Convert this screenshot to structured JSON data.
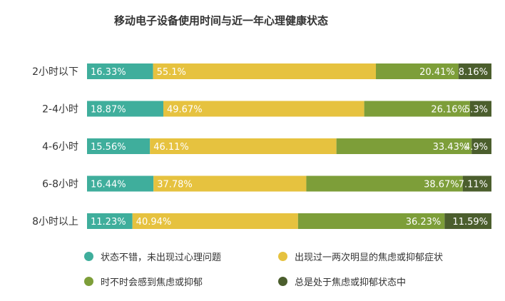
{
  "chart_data": {
    "type": "bar",
    "orientation": "horizontal",
    "stacked": true,
    "title": "移动电子设备使用时间与近一年心理健康状态",
    "categories": [
      "2小时以下",
      "2-4小时",
      "4-6小时",
      "6-8小时",
      "8小时以上"
    ],
    "series": [
      {
        "name": "状态不错，未出现过心理问题",
        "color": "#3fae9c",
        "values": [
          16.33,
          18.87,
          15.56,
          16.44,
          11.23
        ],
        "labels": [
          "16.33%",
          "18.87%",
          "15.56%",
          "16.44%",
          "11.23%"
        ]
      },
      {
        "name": "出现过一两次明显的焦虑或抑郁症状",
        "color": "#e6c23f",
        "values": [
          55.1,
          49.67,
          46.11,
          37.78,
          40.94
        ],
        "labels": [
          "55.1%",
          "49.67%",
          "46.11%",
          "37.78%",
          "40.94%"
        ]
      },
      {
        "name": "时不时会感到焦虑或抑郁",
        "color": "#7d9e39",
        "values": [
          20.41,
          26.16,
          33.43,
          38.67,
          36.23
        ],
        "labels": [
          "20.41%",
          "26.16%",
          "33.43%",
          "38.67%",
          "36.23%"
        ]
      },
      {
        "name": "总是处于焦虑或抑郁状态中",
        "color": "#4b5e2d",
        "values": [
          8.16,
          5.3,
          4.9,
          7.11,
          11.59
        ],
        "labels": [
          "8.16%",
          "5.3%",
          "4.9%",
          "7.11%",
          "11.59%"
        ]
      }
    ],
    "xlim": [
      0,
      100
    ],
    "grid": false,
    "legend_position": "bottom"
  }
}
